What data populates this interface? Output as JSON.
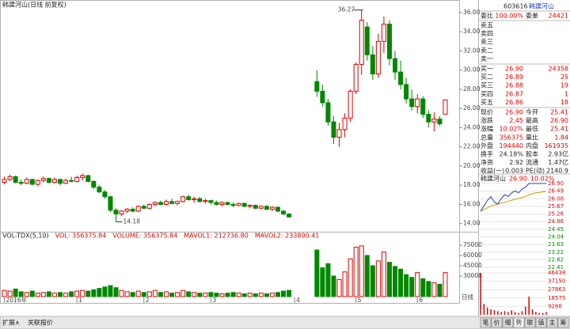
{
  "chart_data": [
    {
      "type": "candlestick",
      "title": "韩建河山(日线 前复权)",
      "period_label": "日线",
      "up_color": "#e00000",
      "down_color": "#008800",
      "ylim": [
        13.4,
        36.9
      ],
      "yticks": [
        {
          "value": 14,
          "label": "14.00"
        },
        {
          "value": 16,
          "label": "16.00"
        },
        {
          "value": 18,
          "label": "18.00"
        },
        {
          "value": 20,
          "label": "20.00"
        },
        {
          "value": 22,
          "label": "22.00"
        },
        {
          "value": 24,
          "label": "24.00"
        },
        {
          "value": 26,
          "label": "26.00"
        },
        {
          "value": 28,
          "label": "28.00"
        },
        {
          "value": 30,
          "label": "30.00"
        },
        {
          "value": 32,
          "label": "32.00"
        },
        {
          "value": 34,
          "label": "34.00"
        },
        {
          "value": 36,
          "label": "36.00"
        }
      ],
      "high_mark": 36.27,
      "low_mark": 14.18,
      "categories": [
        "2016年",
        null,
        null,
        null,
        null,
        null,
        null,
        null,
        null,
        null,
        null,
        null,
        null,
        "1",
        null,
        null,
        null,
        null,
        null,
        null,
        null,
        null,
        null,
        null,
        null,
        "2",
        null,
        null,
        null,
        null,
        null,
        null,
        null,
        null,
        null,
        null,
        null,
        "3",
        null,
        null,
        null,
        null,
        null,
        null,
        null,
        null,
        null,
        null,
        null,
        null,
        null,
        null,
        "4",
        null,
        null,
        null,
        null,
        null,
        null,
        null,
        null,
        null,
        null,
        "5",
        null,
        null,
        null,
        null,
        null,
        null,
        null,
        null,
        null,
        null,
        "6",
        null,
        null,
        null,
        null,
        null
      ],
      "ohlc": [
        [
          18.3,
          18.9,
          18.1,
          18.6
        ],
        [
          18.6,
          19.1,
          18.4,
          18.9
        ],
        [
          18.9,
          19.0,
          18.2,
          18.3
        ],
        [
          18.3,
          18.6,
          18.0,
          18.2
        ],
        [
          18.2,
          18.8,
          18.1,
          18.6
        ],
        [
          18.6,
          18.7,
          18.0,
          18.1
        ],
        [
          18.1,
          18.6,
          17.9,
          18.5
        ],
        [
          18.5,
          18.9,
          18.3,
          18.7
        ],
        [
          18.7,
          18.8,
          18.2,
          18.3
        ],
        [
          18.3,
          18.8,
          18.2,
          18.6
        ],
        [
          18.6,
          18.7,
          18.0,
          18.2
        ],
        [
          18.2,
          18.7,
          18.1,
          18.5
        ],
        [
          18.5,
          18.9,
          18.3,
          18.4
        ],
        [
          18.4,
          19.0,
          18.3,
          18.8
        ],
        [
          18.8,
          19.2,
          18.5,
          19.0
        ],
        [
          19.0,
          19.1,
          18.3,
          18.4
        ],
        [
          18.4,
          18.5,
          17.6,
          17.8
        ],
        [
          17.8,
          18.0,
          17.2,
          17.3
        ],
        [
          17.3,
          17.5,
          16.6,
          16.8
        ],
        [
          16.8,
          16.9,
          15.2,
          15.4
        ],
        [
          15.4,
          15.6,
          14.18,
          15.0
        ],
        [
          15.0,
          15.4,
          14.8,
          15.3
        ],
        [
          15.3,
          15.6,
          15.1,
          15.5
        ],
        [
          15.5,
          15.7,
          15.2,
          15.3
        ],
        [
          15.3,
          15.9,
          15.2,
          15.8
        ],
        [
          15.8,
          16.0,
          15.5,
          15.6
        ],
        [
          15.6,
          16.1,
          15.5,
          16.0
        ],
        [
          16.0,
          16.3,
          15.8,
          16.2
        ],
        [
          16.2,
          16.4,
          15.9,
          16.0
        ],
        [
          16.0,
          16.5,
          15.9,
          16.3
        ],
        [
          16.3,
          16.6,
          16.0,
          16.1
        ],
        [
          16.1,
          16.4,
          15.9,
          16.3
        ],
        [
          16.3,
          16.9,
          16.2,
          16.8
        ],
        [
          16.8,
          17.0,
          16.4,
          16.5
        ],
        [
          16.5,
          16.8,
          16.2,
          16.6
        ],
        [
          16.6,
          16.8,
          16.2,
          16.3
        ],
        [
          16.3,
          16.6,
          16.1,
          16.4
        ],
        [
          16.4,
          16.5,
          16.0,
          16.2
        ],
        [
          16.2,
          16.4,
          15.9,
          16.0
        ],
        [
          16.0,
          16.3,
          15.8,
          16.2
        ],
        [
          16.2,
          16.3,
          15.9,
          16.0
        ],
        [
          16.0,
          16.2,
          15.7,
          15.9
        ],
        [
          15.9,
          16.2,
          15.8,
          16.1
        ],
        [
          16.1,
          16.2,
          15.7,
          15.8
        ],
        [
          15.8,
          16.0,
          15.6,
          15.9
        ],
        [
          15.9,
          16.0,
          15.5,
          15.6
        ],
        [
          15.6,
          15.9,
          15.5,
          15.8
        ],
        [
          15.8,
          15.9,
          15.4,
          15.5
        ],
        [
          15.5,
          15.8,
          15.3,
          15.7
        ],
        [
          15.7,
          15.8,
          15.2,
          15.3
        ],
        [
          15.3,
          15.4,
          14.9,
          15.0
        ],
        [
          15.0,
          15.1,
          14.6,
          14.7
        ],
        null,
        null,
        null,
        null,
        [
          28.8,
          30.0,
          27.2,
          27.8
        ],
        [
          27.8,
          28.5,
          26.2,
          26.6
        ],
        [
          26.6,
          27.0,
          24.2,
          24.6
        ],
        [
          24.6,
          25.2,
          22.3,
          23.0
        ],
        [
          23.0,
          24.5,
          22.0,
          23.8
        ],
        [
          23.8,
          25.5,
          23.0,
          25.0
        ],
        [
          25.0,
          28.0,
          24.6,
          27.8
        ],
        [
          27.8,
          30.8,
          27.5,
          30.6
        ],
        [
          30.6,
          36.27,
          29.5,
          35.2
        ],
        [
          34.5,
          35.0,
          31.0,
          31.6
        ],
        [
          31.6,
          32.5,
          29.0,
          29.6
        ],
        [
          29.6,
          33.8,
          29.2,
          33.0
        ],
        [
          33.0,
          35.6,
          31.8,
          34.8
        ],
        [
          34.8,
          35.2,
          30.5,
          31.2
        ],
        [
          31.2,
          32.0,
          29.0,
          29.8
        ],
        [
          29.8,
          31.0,
          28.0,
          28.5
        ],
        [
          28.5,
          29.2,
          26.5,
          27.0
        ],
        [
          27.0,
          28.0,
          25.8,
          26.2
        ],
        [
          26.2,
          27.5,
          25.5,
          27.0
        ],
        [
          27.0,
          27.3,
          25.0,
          25.4
        ],
        [
          25.4,
          25.8,
          24.0,
          24.6
        ],
        [
          24.6,
          25.6,
          23.6,
          24.9
        ],
        [
          24.9,
          25.2,
          24.2,
          24.4
        ],
        [
          25.41,
          26.9,
          25.41,
          26.9
        ]
      ]
    },
    {
      "type": "volume",
      "indicator_labels": [
        "VOL-TDX(5,10)",
        "VOL: 356375.84",
        "VOLUME: 356375.84",
        "MAVOL1: 212736.80",
        "MAVOL2: 233890.41"
      ],
      "ylim": [
        0,
        90000
      ],
      "yticks": [
        30000,
        45000,
        60000,
        75000
      ],
      "values": [
        9000,
        8000,
        11000,
        7000,
        6000,
        8000,
        5000,
        6000,
        7000,
        5000,
        6000,
        5000,
        7000,
        8000,
        9000,
        8000,
        10000,
        12000,
        14000,
        16000,
        13000,
        9000,
        7000,
        6000,
        8000,
        6000,
        7000,
        9000,
        6000,
        7000,
        5000,
        6000,
        9000,
        7000,
        6000,
        5000,
        5000,
        6000,
        5000,
        4000,
        5000,
        6000,
        5000,
        4000,
        5000,
        4000,
        5000,
        4000,
        5000,
        6000,
        8000,
        9000,
        null,
        null,
        null,
        null,
        68000,
        42000,
        48000,
        30000,
        25000,
        36000,
        55000,
        72000,
        74000,
        60000,
        45000,
        52000,
        65000,
        50000,
        44000,
        40000,
        32000,
        28000,
        35000,
        26000,
        22000,
        20000,
        18000,
        35000
      ]
    },
    {
      "type": "intraday",
      "title": "韩建河山",
      "price_label": "26.90",
      "change_label": "10.02%",
      "price_color": "#1f3fbf",
      "avg_color": "#c8a000",
      "ylim": [
        22.41,
        26.9
      ],
      "yticks": [
        {
          "value": 26.9,
          "label": "26.90"
        },
        26.49,
        26.08,
        25.67,
        25.26,
        24.86,
        24.45,
        24.04,
        23.63,
        23.22,
        22.82,
        22.41
      ],
      "values": [
        25.41,
        25.7,
        26.0,
        26.2,
        25.9,
        25.8,
        26.1,
        26.3,
        26.2,
        26.4,
        26.5,
        26.4,
        26.6,
        26.7,
        26.9,
        26.9,
        26.9,
        26.9,
        26.9,
        26.9
      ],
      "avg_values": [
        25.41,
        25.5,
        25.6,
        25.7,
        25.75,
        25.8,
        25.85,
        25.9,
        25.95,
        26.0,
        26.05,
        26.1,
        26.15,
        26.2,
        26.3,
        26.35,
        26.4,
        26.42,
        26.45,
        26.48
      ],
      "vol_ylim": [
        0,
        46438
      ],
      "vol_yticks": [
        46438,
        37150,
        27863,
        18575,
        9288
      ],
      "volumes": [
        46438,
        12000,
        8000,
        6000,
        5000,
        4000,
        3000,
        4000,
        3000,
        5000,
        3000,
        2000,
        4000,
        9000,
        20000,
        6000,
        3000,
        2000,
        2000,
        3000
      ]
    }
  ],
  "quote": {
    "code": "603616",
    "name": "韩建河山",
    "ratio_row": [
      "委比",
      "100.00%",
      "委差",
      "24421"
    ],
    "asks": [
      "卖五",
      "卖四",
      "卖三",
      "卖二",
      "卖一"
    ],
    "bids": [
      [
        "买一",
        "26.90",
        "24358"
      ],
      [
        "买二",
        "26.89",
        "25"
      ],
      [
        "买三",
        "26.88",
        "19"
      ],
      [
        "买四",
        "26.87",
        "1"
      ],
      [
        "买五",
        "26.86",
        "18"
      ]
    ],
    "stats": [
      [
        "现价",
        "26.90",
        "今开",
        "25.41"
      ],
      [
        "涨跌",
        "2.45",
        "最高",
        "26.90"
      ],
      [
        "涨幅",
        "10.02%",
        "最低",
        "25.41"
      ],
      [
        "总量",
        "356375",
        "量比",
        "1.84"
      ],
      [
        "外盘",
        "194440",
        "内盘",
        "161935"
      ],
      [
        "换手",
        "24.18%",
        "股本",
        "2.93亿"
      ],
      [
        "净资",
        "2.92",
        "流通",
        "1.47亿"
      ],
      [
        "收益(一)",
        "0.003",
        "PE(动)",
        "2140.9"
      ]
    ]
  },
  "toolbar": {
    "left": [
      "扩展∧",
      "关联报价"
    ],
    "tabs": [
      "笔",
      "价",
      "细",
      "势",
      "联",
      "值",
      "主",
      "筹"
    ]
  }
}
